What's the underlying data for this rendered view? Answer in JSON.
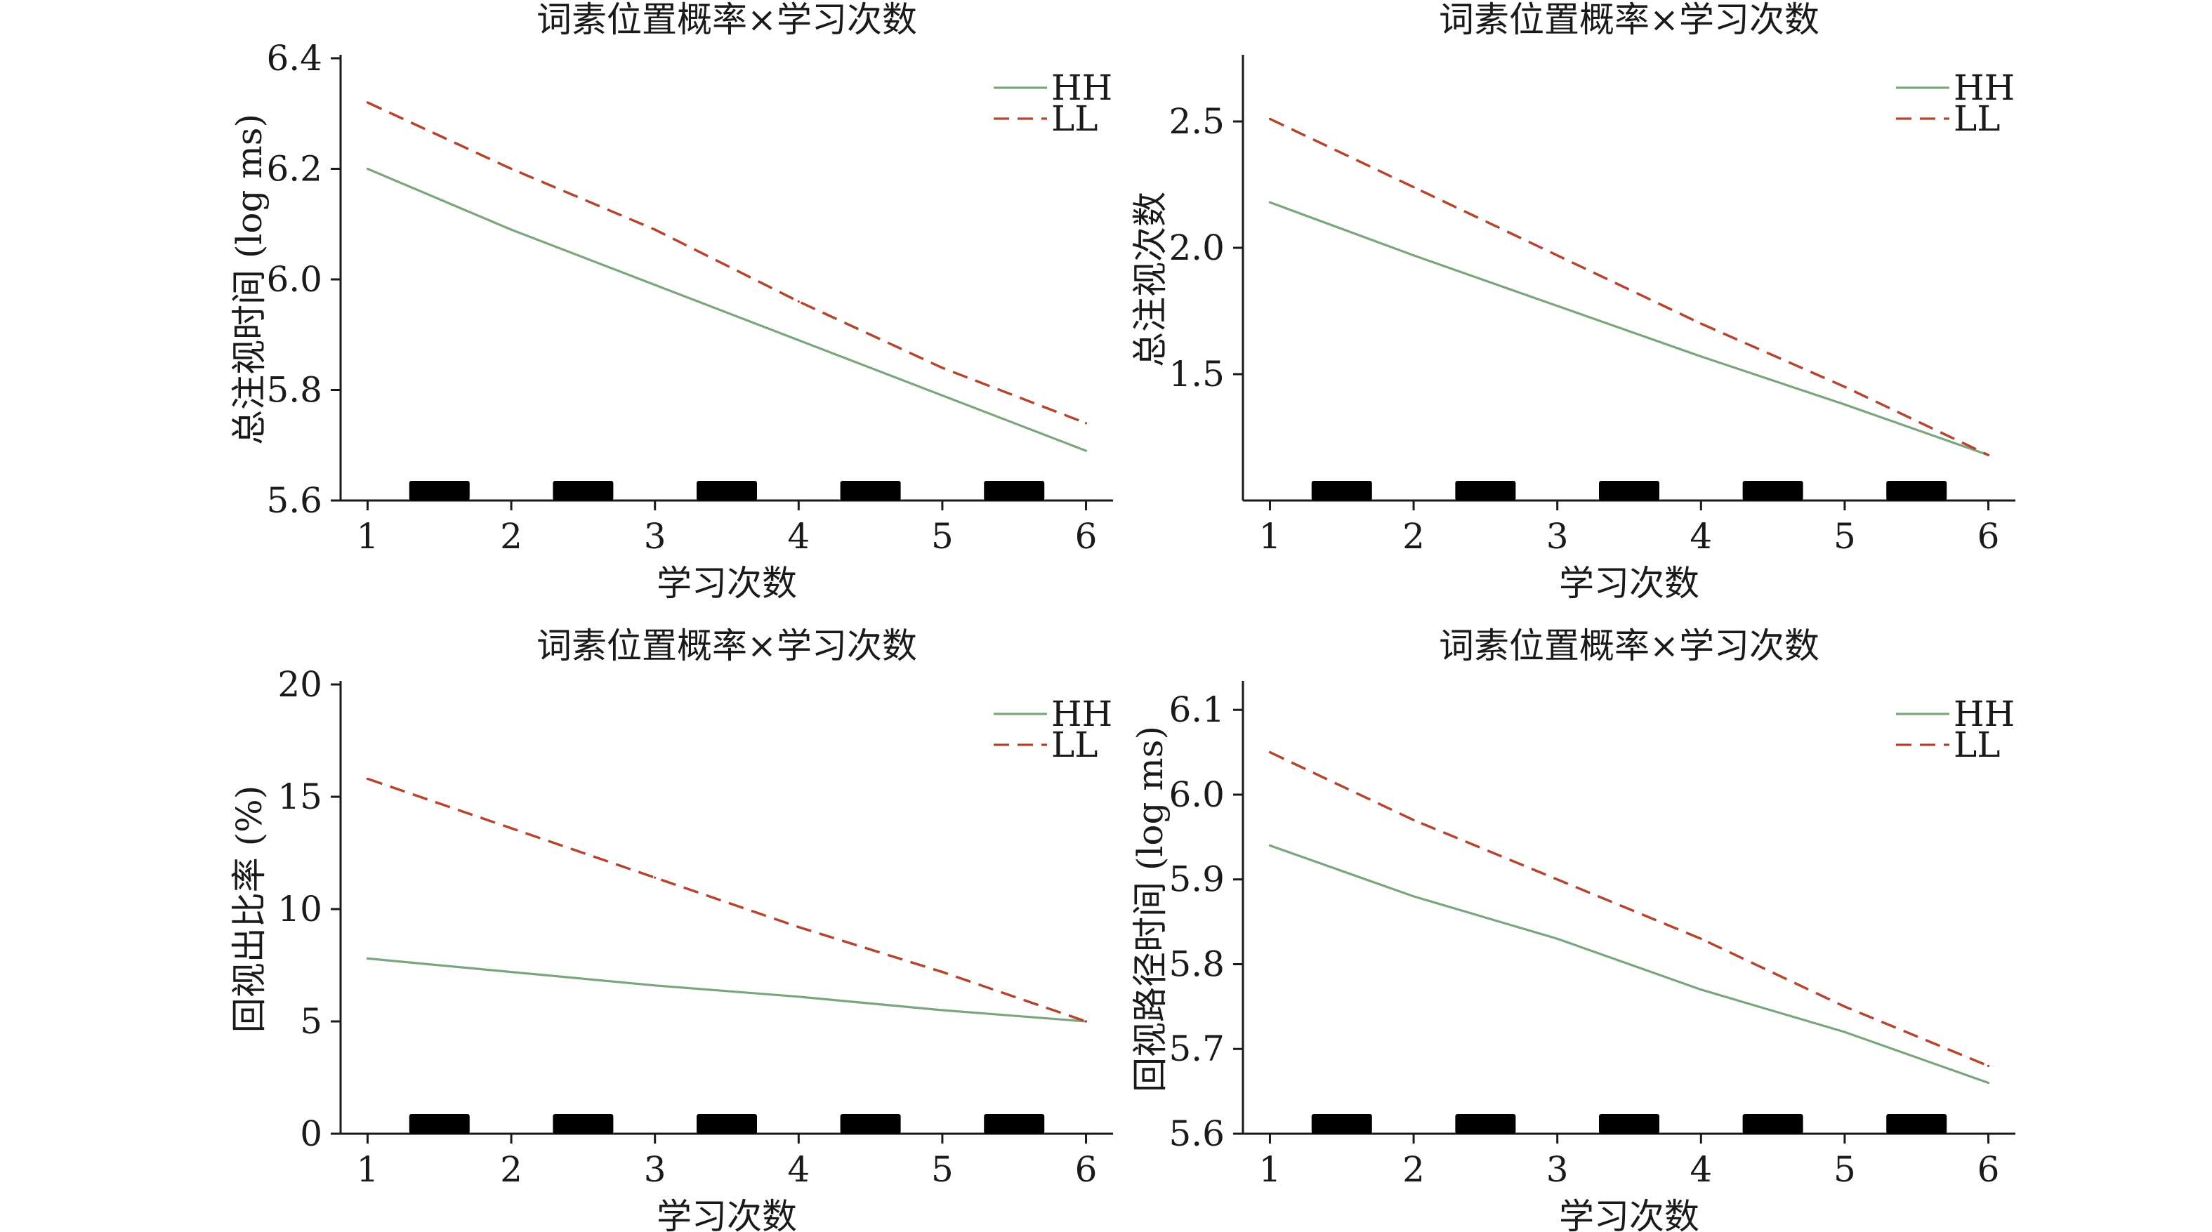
{
  "figure": {
    "x_tick_labels": [
      "1",
      "2",
      "3",
      "4",
      "5",
      "6"
    ],
    "colors": {
      "HH": "#7aa67e",
      "LL": "#b5452f",
      "axis": "#1a1a1a",
      "marker": "#000000"
    }
  },
  "chart_data": [
    {
      "type": "line",
      "title": "词素位置概率×学习次数",
      "xlabel": "学习次数",
      "ylabel": "总注视时间 (log ms)",
      "x": [
        1,
        2,
        3,
        4,
        5,
        6
      ],
      "xlim": [
        0.9,
        6.1
      ],
      "ylim": [
        5.6,
        6.4
      ],
      "yticks": [
        5.6,
        5.8,
        6.0,
        6.2,
        6.4
      ],
      "ytick_labels": [
        "5.6",
        "5.8",
        "6.0",
        "6.2",
        "6.4"
      ],
      "series": [
        {
          "name": "HH",
          "style": "solid",
          "values": [
            6.2,
            6.09,
            5.99,
            5.89,
            5.79,
            5.69
          ]
        },
        {
          "name": "LL",
          "style": "dashed",
          "values": [
            6.32,
            6.2,
            6.09,
            5.96,
            5.84,
            5.74
          ]
        }
      ],
      "legend": "top-right",
      "grid": false
    },
    {
      "type": "line",
      "title": "词素位置概率×学习次数",
      "xlabel": "学习次数",
      "ylabel": "总注视次数",
      "x": [
        1,
        2,
        3,
        4,
        5,
        6
      ],
      "xlim": [
        0.9,
        6.1
      ],
      "ylim": [
        1.0,
        2.75
      ],
      "yticks": [
        1.5,
        2.0,
        2.5
      ],
      "ytick_labels": [
        "1.5",
        "2.0",
        "2.5"
      ],
      "series": [
        {
          "name": "HH",
          "style": "solid",
          "values": [
            2.18,
            1.97,
            1.77,
            1.57,
            1.38,
            1.18
          ]
        },
        {
          "name": "LL",
          "style": "dashed",
          "values": [
            2.51,
            2.24,
            1.97,
            1.7,
            1.45,
            1.18
          ]
        }
      ],
      "legend": "top-right",
      "grid": false
    },
    {
      "type": "line",
      "title": "词素位置概率×学习次数",
      "xlabel": "学习次数",
      "ylabel": "回视出比率 (%)",
      "x": [
        1,
        2,
        3,
        4,
        5,
        6
      ],
      "xlim": [
        0.9,
        6.1
      ],
      "ylim": [
        0,
        20
      ],
      "yticks": [
        0,
        5,
        10,
        15,
        20
      ],
      "ytick_labels": [
        "0",
        "5",
        "10",
        "15",
        "20"
      ],
      "series": [
        {
          "name": "HH",
          "style": "solid",
          "values": [
            7.8,
            7.2,
            6.6,
            6.1,
            5.5,
            5.0
          ]
        },
        {
          "name": "LL",
          "style": "dashed",
          "values": [
            15.8,
            13.6,
            11.4,
            9.2,
            7.2,
            5.0
          ]
        }
      ],
      "legend": "top-right",
      "grid": false
    },
    {
      "type": "line",
      "title": "词素位置概率×学习次数",
      "xlabel": "学习次数",
      "ylabel": "回视路径时间 (log ms)",
      "x": [
        1,
        2,
        3,
        4,
        5,
        6
      ],
      "xlim": [
        0.9,
        6.1
      ],
      "ylim": [
        5.6,
        6.13
      ],
      "yticks": [
        5.6,
        5.7,
        5.8,
        5.9,
        6.0,
        6.1
      ],
      "ytick_labels": [
        "5.6",
        "5.7",
        "5.8",
        "5.9",
        "6.0",
        "6.1"
      ],
      "series": [
        {
          "name": "HH",
          "style": "solid",
          "values": [
            5.94,
            5.88,
            5.83,
            5.77,
            5.72,
            5.66
          ]
        },
        {
          "name": "LL",
          "style": "dashed",
          "values": [
            6.05,
            5.97,
            5.9,
            5.83,
            5.75,
            5.68
          ]
        }
      ],
      "legend": "top-right",
      "grid": false
    }
  ]
}
